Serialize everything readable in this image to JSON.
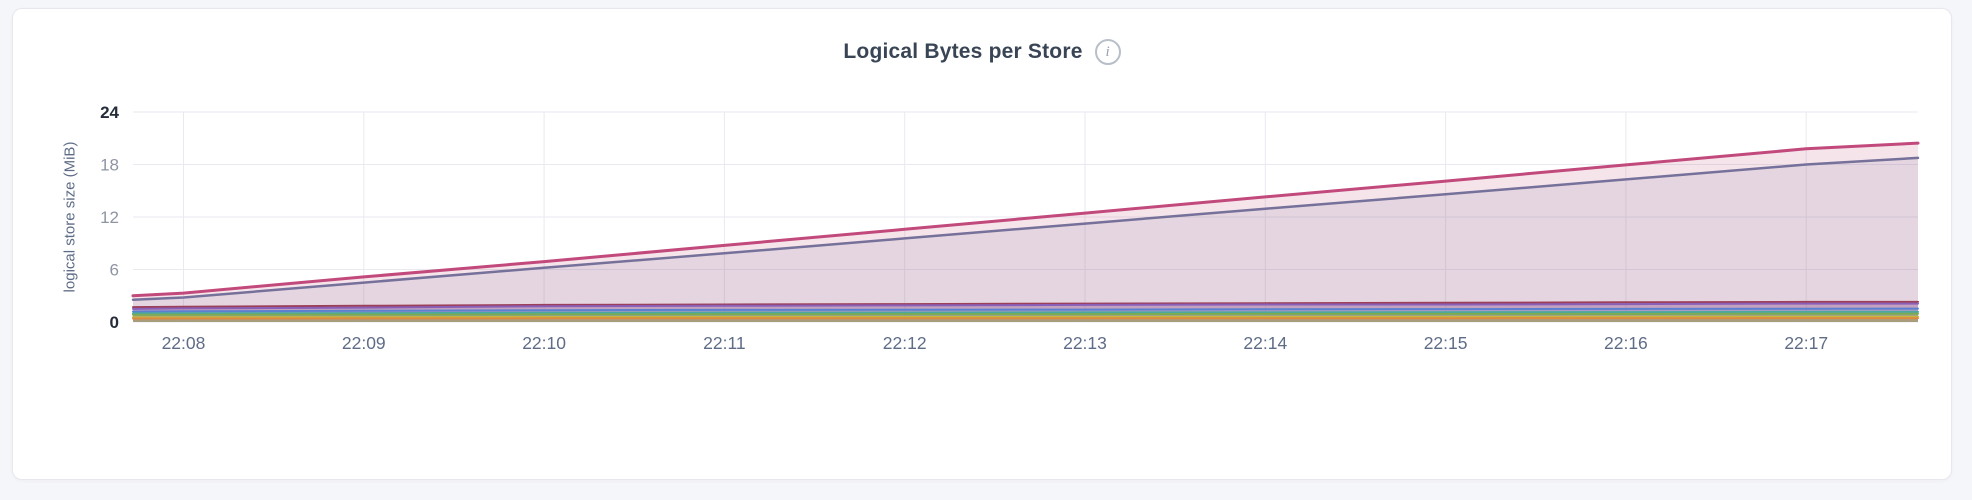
{
  "header": {
    "title": "Logical Bytes per Store",
    "info_glyph": "i"
  },
  "chart_data": {
    "type": "area",
    "title": "Logical Bytes per Store",
    "xlabel": "",
    "ylabel": "logical store size (MiB)",
    "ylim": [
      0,
      24
    ],
    "xlim": [
      -0.28,
      9.62
    ],
    "grid": true,
    "legend": "none",
    "yticks": [
      {
        "value": 0,
        "label": "0",
        "strong": true
      },
      {
        "value": 6,
        "label": "6",
        "strong": false
      },
      {
        "value": 12,
        "label": "12",
        "strong": false
      },
      {
        "value": 18,
        "label": "18",
        "strong": false
      },
      {
        "value": 24,
        "label": "24",
        "strong": true
      }
    ],
    "xticks": [
      {
        "value": 0,
        "label": "22:08"
      },
      {
        "value": 1,
        "label": "22:09"
      },
      {
        "value": 2,
        "label": "22:10"
      },
      {
        "value": 3,
        "label": "22:11"
      },
      {
        "value": 4,
        "label": "22:12"
      },
      {
        "value": 5,
        "label": "22:13"
      },
      {
        "value": 6,
        "label": "22:14"
      },
      {
        "value": 7,
        "label": "22:15"
      },
      {
        "value": 8,
        "label": "22:16"
      },
      {
        "value": 9,
        "label": "22:17"
      }
    ],
    "x": [
      -0.28,
      0,
      1,
      2,
      3,
      4,
      5,
      6,
      7,
      8,
      9,
      9.62
    ],
    "grid_color": "#e8eaf0",
    "series": [
      {
        "color": "#c2497b",
        "width": 3,
        "fill_opacity": 0.15,
        "values": [
          3.0,
          3.3,
          5.15,
          6.9,
          8.75,
          10.6,
          12.45,
          14.3,
          16.1,
          17.95,
          19.8,
          20.45
        ]
      },
      {
        "color": "#76719a",
        "width": 2.5,
        "fill_opacity": 0.13,
        "values": [
          2.55,
          2.8,
          4.5,
          6.2,
          7.85,
          9.55,
          11.25,
          12.95,
          14.6,
          16.3,
          18.0,
          18.75
        ]
      },
      {
        "color": "#9c3f58",
        "width": 2,
        "fill_opacity": 0.22,
        "values": [
          1.7,
          1.75,
          1.85,
          1.95,
          2.0,
          2.05,
          2.1,
          2.15,
          2.2,
          2.25,
          2.3,
          2.3
        ]
      },
      {
        "color": "#8a5fb8",
        "width": 2,
        "fill_opacity": 0.22,
        "values": [
          1.5,
          1.55,
          1.65,
          1.8,
          1.85,
          1.9,
          1.95,
          2.0,
          2.0,
          2.05,
          2.1,
          2.1
        ]
      },
      {
        "color": "#5b80d0",
        "width": 2,
        "fill_opacity": 0.22,
        "values": [
          1.2,
          1.22,
          1.28,
          1.35,
          1.38,
          1.4,
          1.42,
          1.45,
          1.47,
          1.5,
          1.52,
          1.53
        ]
      },
      {
        "color": "#49a8a2",
        "width": 2,
        "fill_opacity": 0.22,
        "values": [
          0.98,
          1.0,
          1.02,
          1.05,
          1.07,
          1.08,
          1.1,
          1.1,
          1.12,
          1.13,
          1.15,
          1.15
        ]
      },
      {
        "color": "#7cab52",
        "width": 2,
        "fill_opacity": 0.22,
        "values": [
          0.82,
          0.83,
          0.85,
          0.87,
          0.88,
          0.9,
          0.9,
          0.92,
          0.92,
          0.93,
          0.95,
          0.95
        ]
      },
      {
        "color": "#c9b43e",
        "width": 2,
        "fill_opacity": 0.22,
        "values": [
          0.55,
          0.55,
          0.56,
          0.57,
          0.58,
          0.58,
          0.6,
          0.6,
          0.6,
          0.62,
          0.62,
          0.62
        ]
      },
      {
        "color": "#dc8a41",
        "width": 2,
        "fill_opacity": 0.22,
        "values": [
          0.4,
          0.4,
          0.41,
          0.42,
          0.42,
          0.43,
          0.43,
          0.44,
          0.44,
          0.45,
          0.45,
          0.45
        ]
      }
    ],
    "tick_label_color": "#5f6c87",
    "y_tick_color": "#8e94a3",
    "y_tick_strong_color": "#242c39"
  }
}
